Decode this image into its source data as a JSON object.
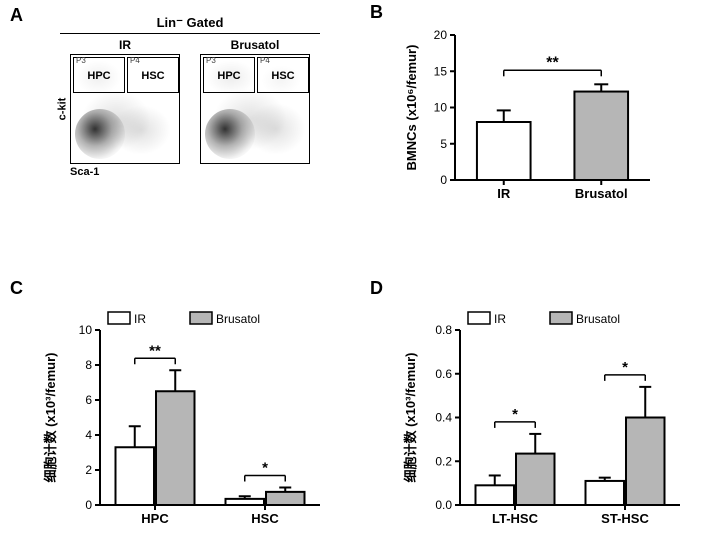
{
  "labels": {
    "A": "A",
    "B": "B",
    "C": "C",
    "D": "D"
  },
  "panelA": {
    "header": "Lin⁻ Gated",
    "plots": [
      {
        "title": "IR",
        "p3": "P3",
        "p4": "P4",
        "p3label": "HPC",
        "p4label": "HSC"
      },
      {
        "title": "Brusatol",
        "p3": "P3",
        "p4": "P4",
        "p3label": "HPC",
        "p4label": "HSC"
      }
    ],
    "yaxis": "c-kit",
    "xaxis": "Sca-1"
  },
  "panelB": {
    "type": "bar",
    "ylabel": "BMNCs (x10⁶/femur)",
    "ylim": [
      0,
      20
    ],
    "ytick_step": 5,
    "categories": [
      "IR",
      "Brusatol"
    ],
    "values": [
      8.0,
      12.2
    ],
    "errors": [
      1.6,
      1.0
    ],
    "colors": [
      "#ffffff",
      "#b6b6b6"
    ],
    "sig": {
      "label": "**",
      "pairs": [
        [
          0,
          1
        ]
      ]
    },
    "axis_color": "#000000",
    "bar_border": "#000000",
    "bar_width": 0.55,
    "label_fontsize": 13,
    "tick_fontsize": 12
  },
  "panelC": {
    "type": "grouped-bar",
    "ylabel": "细胞计数 (x10³/femur)",
    "ylim": [
      0,
      10
    ],
    "ytick_step": 2,
    "groups": [
      "HPC",
      "HSC"
    ],
    "series": [
      {
        "name": "IR",
        "color": "#ffffff",
        "values": [
          3.3,
          0.35
        ],
        "errors": [
          1.2,
          0.15
        ]
      },
      {
        "name": "Brusatol",
        "color": "#b6b6b6",
        "values": [
          6.5,
          0.75
        ],
        "errors": [
          1.2,
          0.25
        ]
      }
    ],
    "sig": [
      {
        "group": 0,
        "label": "**"
      },
      {
        "group": 1,
        "label": "*"
      }
    ],
    "bar_border": "#000000",
    "bar_width": 0.35,
    "label_fontsize": 13,
    "tick_fontsize": 12
  },
  "panelD": {
    "type": "grouped-bar",
    "ylabel": "细胞计数 (x10³/femur)",
    "ylim": [
      0,
      0.8
    ],
    "ytick_step": 0.2,
    "groups": [
      "LT-HSC",
      "ST-HSC"
    ],
    "series": [
      {
        "name": "IR",
        "color": "#ffffff",
        "values": [
          0.09,
          0.11
        ],
        "errors": [
          0.045,
          0.015
        ]
      },
      {
        "name": "Brusatol",
        "color": "#b6b6b6",
        "values": [
          0.235,
          0.4
        ],
        "errors": [
          0.09,
          0.14
        ]
      }
    ],
    "sig": [
      {
        "group": 0,
        "label": "*"
      },
      {
        "group": 1,
        "label": "*"
      }
    ],
    "bar_border": "#000000",
    "bar_width": 0.35,
    "label_fontsize": 13,
    "tick_fontsize": 12
  },
  "legend": {
    "ir": "IR",
    "brusatol": "Brusatol"
  }
}
